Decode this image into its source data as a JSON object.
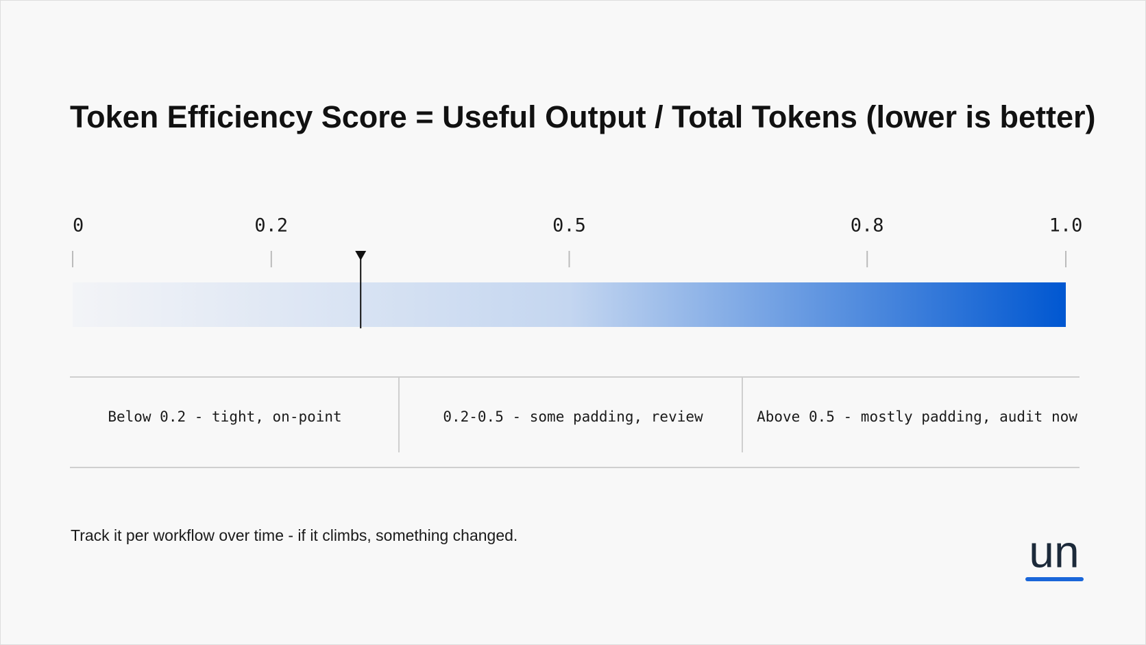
{
  "chart_data": {
    "type": "scale",
    "title": "Token Efficiency Score = Useful Output / Total Tokens (lower is better)",
    "xlim": [
      0,
      1
    ],
    "xticks": [
      0,
      0.2,
      0.5,
      0.8,
      {
        "value": 1,
        "label": "1.0"
      }
    ],
    "gradient": [
      "#f3f4f7",
      "#c4d6f0",
      "#0057d1"
    ],
    "marker": 0.29,
    "marker_color": "#111111",
    "zones": [
      "Below 0.2 - tight, on-point",
      "0.2-0.5 - some padding, review",
      "Above 0.5 - mostly padding, audit now"
    ],
    "footnote": "Track it per workflow over time - if it climbs, something changed.",
    "logo": "un"
  }
}
